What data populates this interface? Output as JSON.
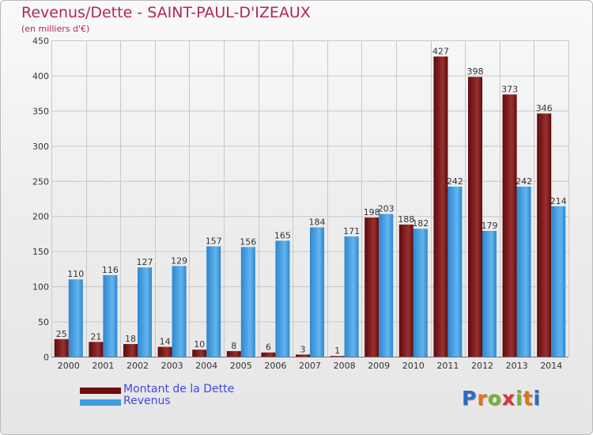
{
  "title": "Revenus/Dette - SAINT-PAUL-D'IZEAUX",
  "subtitle": "(en milliers d'€)",
  "legend": [
    {
      "label": "Montant de la Dette",
      "color": "#6e0d0d"
    },
    {
      "label": "Revenus",
      "color": "#3f9be0"
    }
  ],
  "logo": {
    "letters": [
      "P",
      "r",
      "o",
      "x",
      "i",
      "t",
      "i"
    ],
    "colors": [
      "#2b6cc4",
      "#e2721b",
      "#7ab22e",
      "#d8333e",
      "#7ab22e",
      "#e2721b",
      "#2b6cc4"
    ]
  },
  "colors": {
    "debt_dark": "#5e0a0a",
    "debt_light": "#9a3030",
    "rev_dark": "#2e86cf",
    "rev_light": "#62b5ee",
    "grid": "#c8c8c8",
    "text": "#333333"
  },
  "chart_data": {
    "type": "bar",
    "categories": [
      "2000",
      "2001",
      "2002",
      "2003",
      "2004",
      "2005",
      "2006",
      "2007",
      "2008",
      "2009",
      "2010",
      "2011",
      "2012",
      "2013",
      "2014"
    ],
    "series": [
      {
        "name": "Montant de la Dette",
        "values": [
          25,
          21,
          18,
          14,
          10,
          8,
          6,
          3,
          1,
          198,
          188,
          427,
          398,
          373,
          346
        ]
      },
      {
        "name": "Revenus",
        "values": [
          110,
          116,
          127,
          129,
          157,
          156,
          165,
          184,
          171,
          203,
          182,
          242,
          179,
          242,
          214
        ]
      }
    ],
    "ylim": [
      0,
      450
    ],
    "yticks": [
      0,
      50,
      100,
      150,
      200,
      250,
      300,
      350,
      400,
      450
    ],
    "grid": true,
    "legend_position": "bottom-left"
  }
}
